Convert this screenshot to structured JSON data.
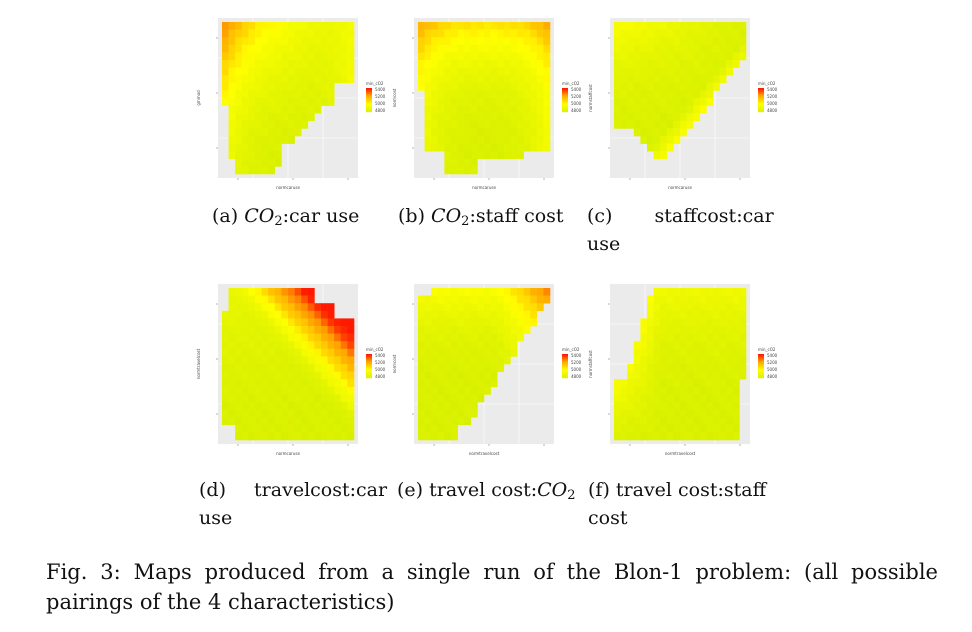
{
  "figure": {
    "caption": "Fig. 3: Maps produced from a single run of the Blon-1 problem: (all possible pairings of the 4 characteristics)"
  },
  "panels": [
    {
      "caption_parts": [
        "(a)",
        "CO",
        "2",
        ":car use"
      ],
      "xlabel": "normcaruse",
      "ylabel": "gmmod",
      "legend_title": "min_cO2",
      "legend_ticks": [
        "5400",
        "5200",
        "5000",
        "4800"
      ]
    },
    {
      "caption_parts": [
        "(b)",
        "CO",
        "2",
        ":staff cost"
      ],
      "xlabel": "normcaruse",
      "ylabel": "normcost",
      "legend_title": "min_cO2",
      "legend_ticks": [
        "5400",
        "5200",
        "5000",
        "4800"
      ]
    },
    {
      "caption_parts": [
        "(c)",
        "staffcost:car",
        "use"
      ],
      "xlabel": "normcaruse",
      "ylabel": "normstaffcost",
      "legend_title": "min_cO2",
      "legend_ticks": [
        "5400",
        "5200",
        "5000",
        "4800"
      ]
    },
    {
      "caption_parts": [
        "(d)",
        "travelcost:car",
        "use"
      ],
      "xlabel": "normcaruse",
      "ylabel": "normtravelcost",
      "legend_title": "min_cO2",
      "legend_ticks": [
        "5400",
        "5200",
        "5000",
        "4800"
      ]
    },
    {
      "caption_parts": [
        "(e)",
        "travel cost:",
        "CO",
        "2"
      ],
      "xlabel": "normtravelcost",
      "ylabel": "normcost",
      "legend_title": "min_cO2",
      "legend_ticks": [
        "5400",
        "5200",
        "5000",
        "4800"
      ]
    },
    {
      "caption_parts": [
        "(f)",
        "travel cost:staff",
        "cost"
      ],
      "xlabel": "normtravelcost",
      "ylabel": "normstaffcost",
      "legend_title": "min_cO2",
      "legend_ticks": [
        "5400",
        "5200",
        "5000",
        "4800"
      ]
    }
  ]
}
